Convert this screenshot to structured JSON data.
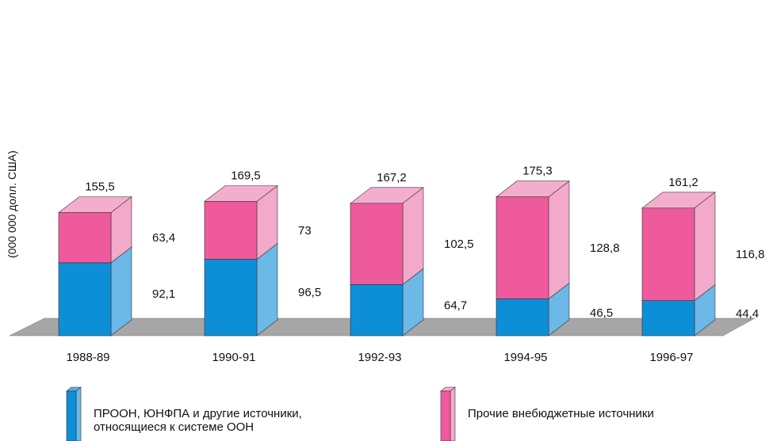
{
  "chart_data": {
    "type": "bar",
    "stacked": true,
    "three_d": true,
    "ylabel": "(000 000 долл. США)",
    "categories": [
      "1988-89",
      "1990-91",
      "1992-93",
      "1994-95",
      "1996-97"
    ],
    "series": [
      {
        "name": "ПРООН, ЮНФПА и другие источники, относящиеся к системе ООН",
        "legend_lines": [
          "ПРООН, ЮНФПА и другие источники,",
          "относящиеся к системе ООН"
        ],
        "values": [
          92.1,
          96.5,
          64.7,
          46.5,
          44.4
        ],
        "labels": [
          "92,1",
          "96,5",
          "64,7",
          "46,5",
          "44,4"
        ],
        "colors": {
          "front": "#0d8fd8",
          "side": "#6cb8e6",
          "top": "#5aaee3"
        }
      },
      {
        "name": "Прочие внебюджетные источники",
        "legend_lines": [
          "Прочие внебюджетные источники"
        ],
        "values": [
          63.4,
          73,
          102.5,
          128.8,
          116.8
        ],
        "labels": [
          "63,4",
          "73",
          "102,5",
          "128,8",
          "116,8"
        ],
        "colors": {
          "front": "#ee5a9b",
          "side": "#f3a9ca",
          "top": "#f4aecd"
        }
      }
    ],
    "totals": [
      155.5,
      169.5,
      167.2,
      175.3,
      161.2
    ],
    "total_labels": [
      "155,5",
      "169,5",
      "167,2",
      "175,3",
      "161,2"
    ],
    "floor_color": "#a6a6a6",
    "legend_position": "bottom"
  }
}
